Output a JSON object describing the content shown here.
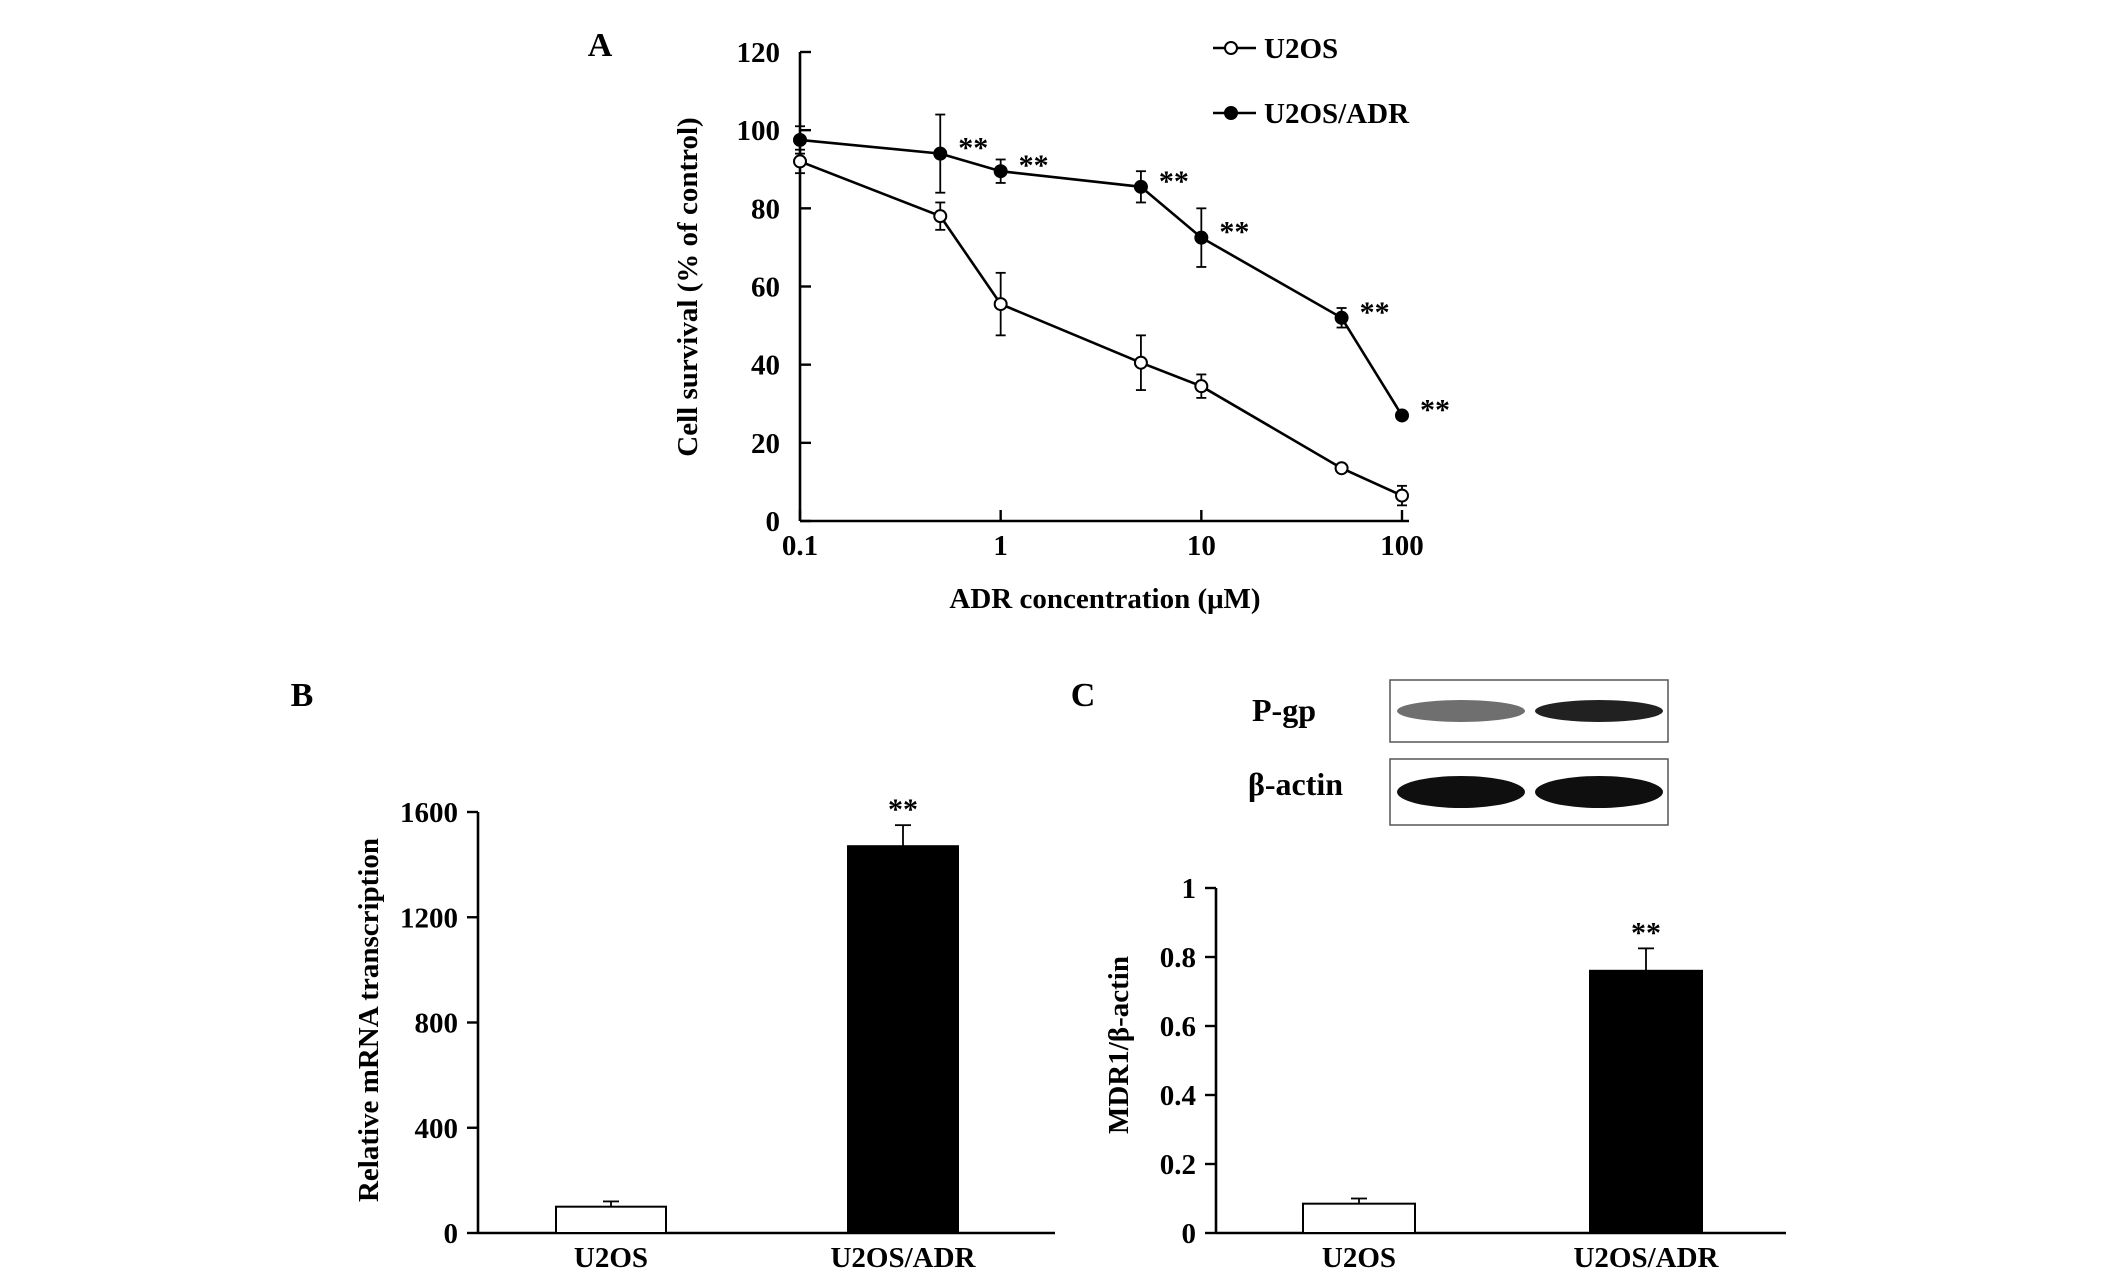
{
  "panels": {
    "A": "A",
    "B": "B",
    "C": "C"
  },
  "blot": {
    "label_pgp": "P-gp",
    "label_actin": "β-actin",
    "bands": {
      "P-gp": [
        0.45,
        0.9
      ],
      "β-actin": [
        1.0,
        1.0
      ]
    }
  },
  "chart_data": [
    {
      "panel": "A",
      "type": "line",
      "xlabel": "ADR concentration (μM)",
      "ylabel": "Cell survival (% of control)",
      "xscale": "log",
      "xlim": [
        0.1,
        100
      ],
      "ylim": [
        0,
        120
      ],
      "xticks": [
        0.1,
        1,
        10,
        100
      ],
      "xtick_labels": [
        "0.1",
        "1",
        "10",
        "100"
      ],
      "yticks": [
        0,
        20,
        40,
        60,
        80,
        100,
        120
      ],
      "ytick_labels": [
        "0",
        "20",
        "40",
        "60",
        "80",
        "100",
        "120"
      ],
      "legend_position": "top-right",
      "series": [
        {
          "name": "U2OS",
          "marker": "open-circle",
          "x": [
            0.1,
            0.5,
            1,
            5,
            10,
            50,
            100
          ],
          "y": [
            92,
            78,
            55.5,
            40.5,
            34.5,
            13.5,
            6.5
          ],
          "err": [
            3,
            3.5,
            8,
            7,
            3,
            0.5,
            2.5
          ],
          "annotations": []
        },
        {
          "name": "U2OS/ADR",
          "marker": "filled-circle",
          "x": [
            0.1,
            0.5,
            1,
            5,
            10,
            50,
            100
          ],
          "y": [
            97.5,
            94,
            89.5,
            85.5,
            72.5,
            52,
            27
          ],
          "err": [
            3.5,
            10,
            3,
            4,
            7.5,
            2.5,
            0
          ],
          "annotations": [
            "",
            "**",
            "**",
            "**",
            "**",
            "**",
            "**"
          ]
        }
      ]
    },
    {
      "panel": "B",
      "type": "bar",
      "categories": [
        "U2OS",
        "U2OS/ADR"
      ],
      "values": [
        100,
        1470
      ],
      "err": [
        20,
        80
      ],
      "colors": [
        "#ffffff",
        "#000000"
      ],
      "annotations": [
        "",
        "**"
      ],
      "ylabel": "Relative mRNA transcription",
      "ylim": [
        0,
        1600
      ],
      "yticks": [
        0,
        400,
        800,
        1200,
        1600
      ],
      "ytick_labels": [
        "0",
        "400",
        "800",
        "1200",
        "1600"
      ]
    },
    {
      "panel": "C",
      "type": "bar",
      "categories": [
        "U2OS",
        "U2OS/ADR"
      ],
      "values": [
        0.085,
        0.76
      ],
      "err": [
        0.015,
        0.065
      ],
      "colors": [
        "#ffffff",
        "#000000"
      ],
      "annotations": [
        "",
        "**"
      ],
      "ylabel": "MDR1/β-actin",
      "ylim": [
        0,
        1
      ],
      "yticks": [
        0,
        0.2,
        0.4,
        0.6,
        0.8,
        1
      ],
      "ytick_labels": [
        "0",
        "0.2",
        "0.4",
        "0.6",
        "0.8",
        "1"
      ]
    }
  ]
}
